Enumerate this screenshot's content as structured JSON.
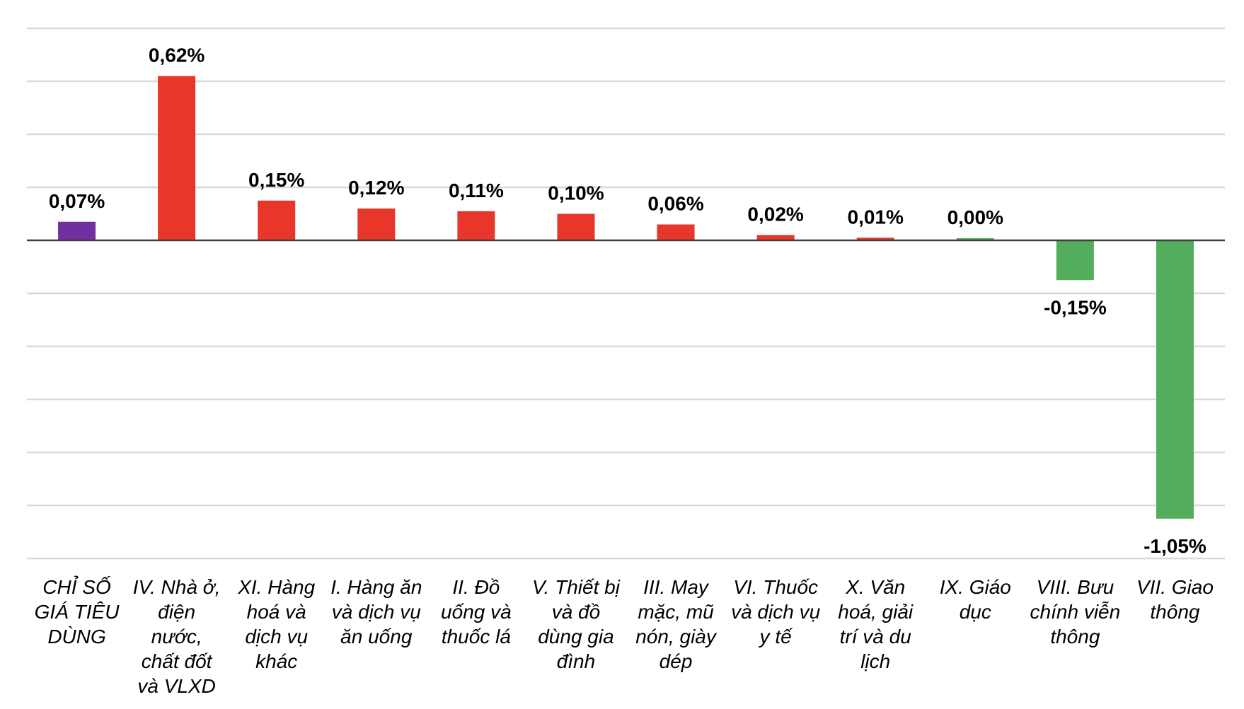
{
  "chart_data": {
    "type": "bar",
    "title": "",
    "xlabel": "",
    "ylabel": "",
    "ylim": [
      -1.2,
      0.8
    ],
    "grid": true,
    "categories": [
      [
        "CHỈ SỐ",
        "GIÁ TIÊU",
        "DÙNG"
      ],
      [
        "IV. Nhà ở,",
        "điện",
        "nước,",
        "chất đốt",
        "và VLXD"
      ],
      [
        "XI. Hàng",
        "hoá và",
        "dịch vụ",
        "khác"
      ],
      [
        "I. Hàng ăn",
        "và dịch vụ",
        "ăn uống"
      ],
      [
        "II. Đồ",
        "uống và",
        "thuốc lá"
      ],
      [
        "V. Thiết bị",
        "và đồ",
        "dùng gia",
        "đình"
      ],
      [
        "III. May",
        "mặc, mũ",
        "nón, giày",
        "dép"
      ],
      [
        "VI. Thuốc",
        "và dịch vụ",
        "y tế"
      ],
      [
        "X. Văn",
        "hoá, giải",
        "trí và du",
        "lịch"
      ],
      [
        "IX. Giáo",
        "dục"
      ],
      [
        "VIII. Bưu",
        "chính viễn",
        "thông"
      ],
      [
        "VII. Giao",
        "thông"
      ]
    ],
    "values": [
      0.07,
      0.62,
      0.15,
      0.12,
      0.11,
      0.1,
      0.06,
      0.02,
      0.01,
      0.0,
      -0.15,
      -1.05
    ],
    "labels": [
      "0,07%",
      "0,62%",
      "0,15%",
      "0,12%",
      "0,11%",
      "0,10%",
      "0,06%",
      "0,02%",
      "0,01%",
      "0,00%",
      "-0,15%",
      "-1,05%"
    ],
    "colors": {
      "index": "#7030a0",
      "positive": "#e8372a",
      "negative": "#53ad5c",
      "zero": "#53ad5c",
      "grid": "#d9d9d9",
      "axis": "#404040"
    }
  }
}
